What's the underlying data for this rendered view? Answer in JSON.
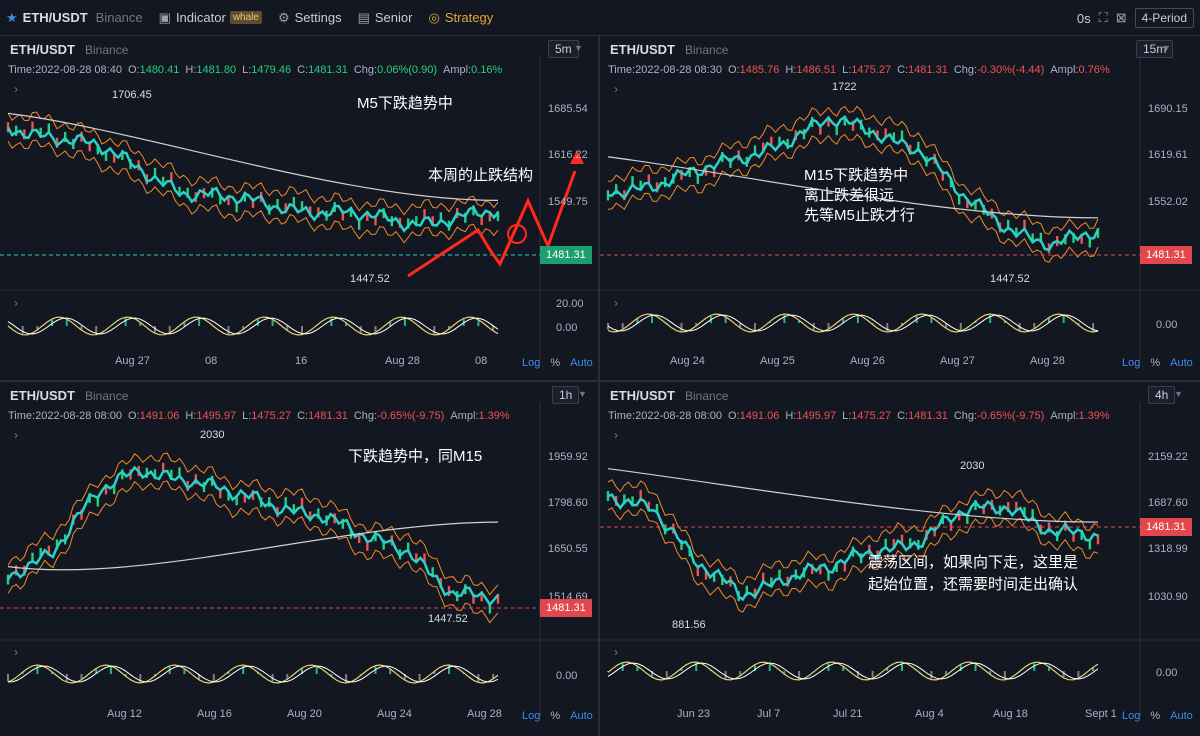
{
  "topbar": {
    "symbol": "ETH/USDT",
    "exchange": "Binance",
    "indicator_label": "Indicator",
    "indicator_badge": "whale",
    "settings_label": "Settings",
    "senior_label": "Senior",
    "strategy_label": "Strategy",
    "timer": "0s",
    "period_layout": "4-Period",
    "icons": [
      "star-icon",
      "indicator-icon",
      "gear-icon",
      "layout-icon",
      "strategy-icon",
      "fullscreen-icon",
      "close-icon"
    ]
  },
  "colors": {
    "background": "#131722",
    "up": "#26d07c",
    "down": "#ef5350",
    "ma_teal": "#2ad1c4",
    "ma_white": "#d0d0d0",
    "band_orange": "#f08a24",
    "arrow_red": "#ff2a1a",
    "tag_teal": "#1d9e6e",
    "tag_red": "#e0484e"
  },
  "panels": [
    {
      "symbol": "ETH/USDT",
      "exchange": "Binance",
      "timeframe": "5m",
      "ohlc": {
        "time": "Time:2022-08-28 08:40",
        "o": "1480.41",
        "h": "1481.80",
        "l": "1479.46",
        "c": "1481.31",
        "chg": "0.06%(0.90)",
        "ampl": "0.16%"
      },
      "prices": [
        "1685.54",
        "1616.22",
        "1549.75"
      ],
      "last_price": "1481.31",
      "osc_labels": [
        "20.00",
        "0.00"
      ],
      "dates": [
        "Aug 27",
        "08",
        "16",
        "Aug 28",
        "08"
      ],
      "high_anno": "1706.45",
      "low_anno": "1447.52",
      "notes": [
        "M5下跌趋势中",
        "本周的止跌结构"
      ],
      "log": "Log",
      "pct": "%",
      "auto": "Auto"
    },
    {
      "symbol": "ETH/USDT",
      "exchange": "Binance",
      "timeframe": "15m",
      "ohlc": {
        "time": "Time:2022-08-28 08:30",
        "o": "1485.76",
        "h": "1486.51",
        "l": "1475.27",
        "c": "1481.31",
        "chg": "-0.30%(-4.44)",
        "ampl": "0.76%"
      },
      "prices": [
        "1690.15",
        "1619.61",
        "1552.02"
      ],
      "last_price": "1481.31",
      "osc_labels": [
        "0.00"
      ],
      "dates": [
        "Aug 24",
        "Aug 25",
        "Aug 26",
        "Aug 27",
        "Aug 28"
      ],
      "high_anno": "1722",
      "low_anno": "1447.52",
      "notes": [
        "M15下跌趋势中",
        "离止跌差很远",
        "先等M5止跌才行"
      ],
      "log": "Log",
      "pct": "%",
      "auto": "Auto"
    },
    {
      "symbol": "ETH/USDT",
      "exchange": "Binance",
      "timeframe": "1h",
      "ohlc": {
        "time": "Time:2022-08-28 08:00",
        "o": "1491.06",
        "h": "1495.97",
        "l": "1475.27",
        "c": "1481.31",
        "chg": "-0.65%(-9.75)",
        "ampl": "1.39%"
      },
      "prices": [
        "1959.92",
        "1798.60",
        "1650.55",
        "1514.69"
      ],
      "last_price": "1481.31",
      "osc_labels": [
        "0.00"
      ],
      "dates": [
        "Aug 12",
        "Aug 16",
        "Aug 20",
        "Aug 24",
        "Aug 28"
      ],
      "high_anno": "2030",
      "low_anno": "1447.52",
      "notes": [
        "下跌趋势中，同M15"
      ],
      "log": "Log",
      "pct": "%",
      "auto": "Auto"
    },
    {
      "symbol": "ETH/USDT",
      "exchange": "Binance",
      "timeframe": "4h",
      "ohlc": {
        "time": "Time:2022-08-28 08:00",
        "o": "1491.06",
        "h": "1495.97",
        "l": "1475.27",
        "c": "1481.31",
        "chg": "-0.65%(-9.75)",
        "ampl": "1.39%"
      },
      "prices": [
        "2159.22",
        "1687.60",
        "1318.99",
        "1030.90"
      ],
      "last_price": "1481.31",
      "osc_labels": [
        "0.00"
      ],
      "dates": [
        "Jun 23",
        "Jul 7",
        "Jul 21",
        "Aug 4",
        "Aug 18",
        "Sept 1"
      ],
      "high_anno": "2030",
      "low_anno": "881.56",
      "notes": [
        "震荡区间，如果向下走，这里是",
        "起始位置，还需要时间走出确认"
      ],
      "log": "Log",
      "pct": "%",
      "auto": "Auto"
    }
  ]
}
